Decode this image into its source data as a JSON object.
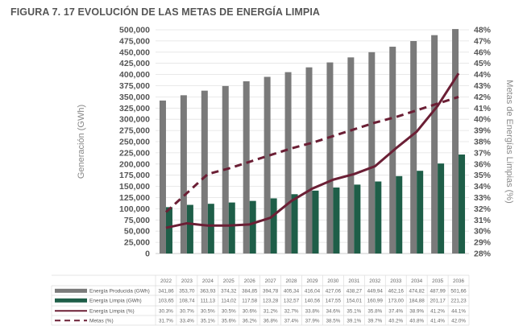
{
  "title": "FIGURA 7. 17 EVOLUCIÓN DE LAS METAS DE ENERGÍA LIMPIA",
  "chart_data": {
    "type": "bar",
    "categories": [
      "2022",
      "2023",
      "2024",
      "2025",
      "2026",
      "2027",
      "2028",
      "2029",
      "2030",
      "2031",
      "2032",
      "2033",
      "2034",
      "2035",
      "2036"
    ],
    "ylabel": "Generación (GWh)",
    "y2label": "Metas de Energías Limpias (%)",
    "ylim": [
      0,
      500000
    ],
    "y2lim": [
      28,
      48
    ],
    "yticks": [
      "0",
      "25,000",
      "50,000",
      "75,000",
      "100,000",
      "125,000",
      "150,000",
      "175,000",
      "200,000",
      "225,000",
      "250,000",
      "275,000",
      "300,000",
      "325,000",
      "350,000",
      "375,000",
      "400,000",
      "425,000",
      "450,000",
      "475,000",
      "500,000"
    ],
    "y2ticks": [
      "28%",
      "29%",
      "30%",
      "31%",
      "32%",
      "33%",
      "34%",
      "35%",
      "36%",
      "37%",
      "38%",
      "39%",
      "40%",
      "41%",
      "42%",
      "43%",
      "44%",
      "45%",
      "46%",
      "47%",
      "48%"
    ],
    "grid": true,
    "legend": "data-table-below",
    "series": [
      {
        "name": "Energía Producida (GWh)",
        "type": "bar",
        "axis": "left",
        "color": "#7a7a7a",
        "values": [
          341860,
          353700,
          363930,
          374320,
          384850,
          394780,
          405340,
          416040,
          427060,
          438270,
          449940,
          462160,
          474820,
          487990,
          501660
        ],
        "labels": [
          "341,86",
          "353,70",
          "363,93",
          "374,32",
          "384,85",
          "394,78",
          "405,34",
          "416,04",
          "427,06",
          "438,27",
          "449,94",
          "462,16",
          "474,82",
          "487,99",
          "501,66"
        ]
      },
      {
        "name": "Energía Limpia (GWh)",
        "type": "bar",
        "axis": "left",
        "color": "#1e5e48",
        "values": [
          103650,
          108740,
          111130,
          114020,
          117580,
          123280,
          132570,
          140560,
          147550,
          154010,
          160990,
          173000,
          184880,
          201170,
          221230
        ],
        "labels": [
          "103,65",
          "108,74",
          "111,13",
          "114,02",
          "117,58",
          "123,28",
          "132,57",
          "140,56",
          "147,55",
          "154,01",
          "160,99",
          "173,00",
          "184,88",
          "201,17",
          "221,23"
        ]
      },
      {
        "name": "Energía Limpia (%)",
        "type": "line",
        "axis": "right",
        "color": "#6b1f35",
        "values": [
          30.3,
          30.7,
          30.5,
          30.5,
          30.6,
          31.2,
          32.7,
          33.8,
          34.6,
          35.1,
          35.8,
          37.4,
          38.9,
          41.2,
          44.1
        ],
        "labels": [
          "30.3%",
          "30.7%",
          "30.5%",
          "30.5%",
          "30.6%",
          "31.2%",
          "32.7%",
          "33.8%",
          "34.6%",
          "35.1%",
          "35.8%",
          "37.4%",
          "38.9%",
          "41.2%",
          "44.1%"
        ]
      },
      {
        "name": "Metas (%)",
        "type": "dashed-line",
        "axis": "right",
        "color": "#6b1f35",
        "values": [
          31.7,
          33.4,
          35.1,
          35.6,
          36.2,
          36.8,
          37.4,
          37.9,
          38.5,
          39.1,
          39.7,
          40.2,
          40.8,
          41.4,
          42.0
        ],
        "labels": [
          "31.7%",
          "33.4%",
          "35.1%",
          "35.6%",
          "36.2%",
          "36.8%",
          "37.4%",
          "37.9%",
          "38.5%",
          "39.1%",
          "39.7%",
          "40.2%",
          "40.8%",
          "41.4%",
          "42.0%"
        ]
      }
    ]
  }
}
